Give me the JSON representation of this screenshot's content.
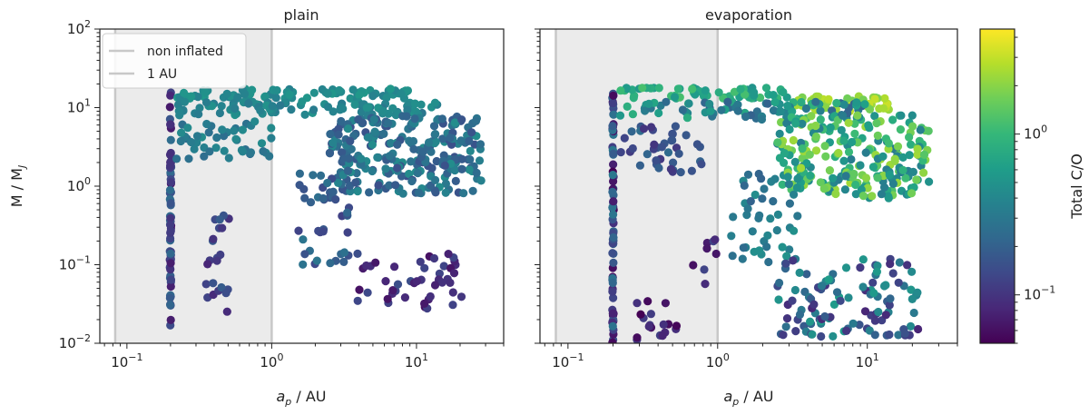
{
  "chart_data": [
    {
      "type": "scatter",
      "title": "plain",
      "xlabel": "a_p / AU",
      "ylabel": "M / M_J",
      "xscale": "log",
      "yscale": "log",
      "xlim": [
        0.065,
        40
      ],
      "ylim": [
        0.01,
        100
      ],
      "x_ticks": [
        {
          "value": 0.1,
          "base": "10",
          "exp": "−1"
        },
        {
          "value": 1,
          "base": "10",
          "exp": "0"
        },
        {
          "value": 10,
          "base": "10",
          "exp": "1"
        }
      ],
      "y_ticks": [
        {
          "value": 0.01,
          "base": "10",
          "exp": "−2"
        },
        {
          "value": 0.1,
          "base": "10",
          "exp": "−1"
        },
        {
          "value": 1,
          "base": "10",
          "exp": "0"
        },
        {
          "value": 10,
          "base": "10",
          "exp": "1"
        },
        {
          "value": 100,
          "base": "10",
          "exp": "2"
        }
      ],
      "shaded_region": [
        0.083,
        1.0
      ],
      "vertical_lines": [
        {
          "x": 0.083,
          "label": "non inflated"
        },
        {
          "x": 1.0,
          "label": "1 AU"
        }
      ],
      "legend": {
        "location": "upper-left",
        "entries": [
          "non inflated",
          "1 AU"
        ]
      },
      "clusters": [
        {
          "name": "inner-column",
          "x": [
            0.2,
            0.2
          ],
          "y": [
            0.016,
            16
          ],
          "co": [
            0.06,
            0.25
          ],
          "n": 70
        },
        {
          "name": "top-band",
          "x": [
            0.22,
            9
          ],
          "y": [
            13,
            17.5
          ],
          "co": [
            0.35,
            0.55
          ],
          "n": 80
        },
        {
          "name": "upper-band",
          "x": [
            0.22,
            14
          ],
          "y": [
            8,
            12
          ],
          "co": [
            0.3,
            0.5
          ],
          "n": 90
        },
        {
          "name": "middle-band",
          "x": [
            0.22,
            1.1
          ],
          "y": [
            2.2,
            7
          ],
          "co": [
            0.25,
            0.45
          ],
          "n": 45
        },
        {
          "name": "main-cloud",
          "x": [
            2.5,
            28
          ],
          "y": [
            0.8,
            8
          ],
          "co": [
            0.15,
            0.45
          ],
          "n": 260
        },
        {
          "name": "low-chain",
          "x": [
            1.5,
            3.5
          ],
          "y": [
            0.1,
            1.5
          ],
          "co": [
            0.12,
            0.3
          ],
          "n": 40
        },
        {
          "name": "inner-low",
          "x": [
            0.35,
            0.52
          ],
          "y": [
            0.024,
            0.45
          ],
          "co": [
            0.08,
            0.2
          ],
          "n": 22
        },
        {
          "name": "outer-low",
          "x": [
            6,
            21
          ],
          "y": [
            0.027,
            0.14
          ],
          "co": [
            0.06,
            0.15
          ],
          "n": 38
        },
        {
          "name": "mid-low",
          "x": [
            3.8,
            5.4
          ],
          "y": [
            0.03,
            0.18
          ],
          "co": [
            0.06,
            0.15
          ],
          "n": 8
        }
      ]
    },
    {
      "type": "scatter",
      "title": "evaporation",
      "xlabel": "a_p / AU",
      "ylabel": "",
      "xscale": "log",
      "yscale": "log",
      "xlim": [
        0.065,
        40
      ],
      "ylim": [
        0.01,
        100
      ],
      "x_ticks": [
        {
          "value": 0.1,
          "base": "10",
          "exp": "−1"
        },
        {
          "value": 1,
          "base": "10",
          "exp": "0"
        },
        {
          "value": 10,
          "base": "10",
          "exp": "1"
        }
      ],
      "shaded_region": [
        0.083,
        1.0
      ],
      "vertical_lines": [
        {
          "x": 0.083,
          "label": "non inflated"
        },
        {
          "x": 1.0,
          "label": "1 AU"
        }
      ],
      "clusters": [
        {
          "name": "inner-column",
          "x": [
            0.2,
            0.2
          ],
          "y": [
            0.01,
            16
          ],
          "co": [
            0.05,
            0.3
          ],
          "n": 75
        },
        {
          "name": "top-band",
          "x": [
            0.22,
            3
          ],
          "y": [
            13,
            18
          ],
          "co": [
            0.5,
            1.2
          ],
          "n": 60
        },
        {
          "name": "top-band-outer",
          "x": [
            3,
            14
          ],
          "y": [
            9,
            14
          ],
          "co": [
            1.6,
            3.2
          ],
          "n": 50
        },
        {
          "name": "upper-band",
          "x": [
            0.22,
            10
          ],
          "y": [
            7,
            12
          ],
          "co": [
            0.2,
            0.9
          ],
          "n": 80
        },
        {
          "name": "inner-mid",
          "x": [
            0.22,
            0.8
          ],
          "y": [
            1.5,
            6
          ],
          "co": [
            0.1,
            0.25
          ],
          "n": 40
        },
        {
          "name": "main-cloud",
          "x": [
            2.5,
            26
          ],
          "y": [
            0.7,
            8
          ],
          "co": [
            0.3,
            2.4
          ],
          "n": 240
        },
        {
          "name": "low-chain",
          "x": [
            1.2,
            3.5
          ],
          "y": [
            0.1,
            1.5
          ],
          "co": [
            0.2,
            0.5
          ],
          "n": 45
        },
        {
          "name": "low-curve",
          "x": [
            0.28,
            0.55
          ],
          "y": [
            0.01,
            0.04
          ],
          "co": [
            0.05,
            0.12
          ],
          "n": 18
        },
        {
          "name": "mid-low-points",
          "x": [
            0.6,
            1.1
          ],
          "y": [
            0.03,
            0.5
          ],
          "co": [
            0.06,
            0.15
          ],
          "n": 8
        },
        {
          "name": "lower-right",
          "x": [
            2.5,
            22
          ],
          "y": [
            0.012,
            0.12
          ],
          "co": [
            0.08,
            0.6
          ],
          "n": 110
        }
      ]
    }
  ],
  "colorbar": {
    "label": "Total C/O",
    "scale": "log",
    "range": [
      0.05,
      4.5
    ],
    "colormap": "viridis",
    "ticks": [
      {
        "value": 0.1,
        "base": "10",
        "exp": "−1"
      },
      {
        "value": 1,
        "base": "10",
        "exp": "0"
      }
    ]
  },
  "colors": {
    "shade": "#ebebeb",
    "vline": "#c8c8c8",
    "frame": "#222222",
    "viridis": [
      "#440154",
      "#482878",
      "#3e4989",
      "#31688e",
      "#26828e",
      "#1f9e89",
      "#35b779",
      "#6ece58",
      "#b5de2b",
      "#fde725"
    ]
  }
}
